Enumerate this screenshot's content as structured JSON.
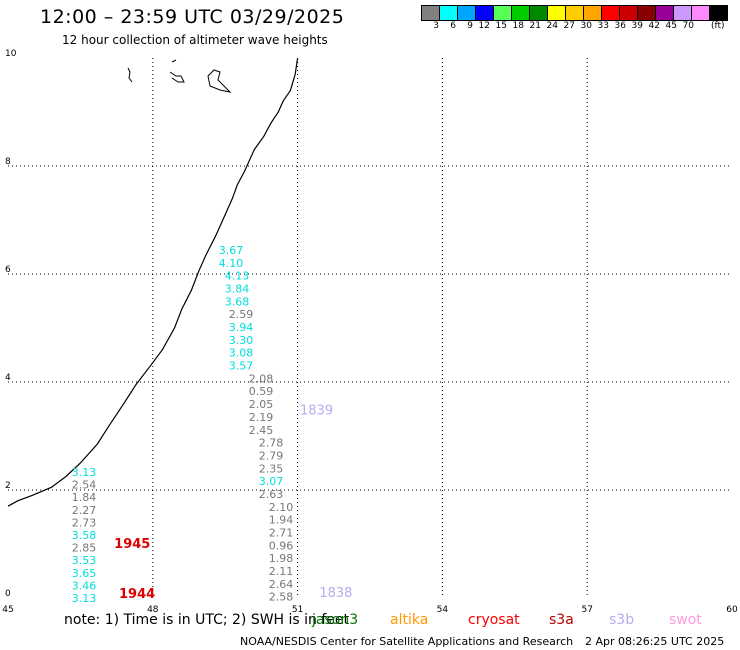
{
  "header": {
    "title": "12:00 – 23:59 UTC 03/29/2025",
    "subtitle": "12 hour collection of altimeter wave heights"
  },
  "colorbar": {
    "colors": [
      "#808080",
      "#00ffff",
      "#00a5ff",
      "#0000ff",
      "#55ff55",
      "#00cc00",
      "#008800",
      "#ffff00",
      "#ffcc00",
      "#ffa500",
      "#ff0000",
      "#cc0000",
      "#880000",
      "#990099",
      "#cc99ff",
      "#ff88ff",
      "#000000"
    ],
    "labels": [
      "3",
      "6",
      "9",
      "12",
      "15",
      "18",
      "21",
      "24",
      "27",
      "30",
      "33",
      "36",
      "39",
      "42",
      "45",
      "70"
    ],
    "unit": "(ft)"
  },
  "map": {
    "lon_ticks": [
      "45",
      "48",
      "51",
      "54",
      "57",
      "60"
    ],
    "lat_ticks": [
      "0",
      "2",
      "4",
      "6",
      "8",
      "10"
    ],
    "lon_range": [
      45,
      60
    ],
    "lat_range": [
      0,
      10
    ],
    "wave_heights": [
      {
        "lon": 46.5,
        "values": [
          "3.13",
          "2.54",
          "1.84",
          "2.27",
          "2.73",
          "3.58",
          "2.85",
          "3.53",
          "3.65",
          "3.46",
          "3.13"
        ],
        "colors": [
          "#00dddd",
          "#777777",
          "#777777",
          "#777777",
          "#777777",
          "#00dddd",
          "#777777",
          "#00dddd",
          "#00dddd",
          "#00dddd",
          "#00dddd"
        ],
        "lat_top": 2.3,
        "lat_step": 0.232
      },
      {
        "lon": 46.9,
        "values": [
          "3.67",
          "4.10",
          "4.13",
          "3.84",
          "3.68",
          "2.59",
          "3.94",
          "3.30",
          "3.08",
          "3.57",
          "2.08",
          "0.59",
          "2.05",
          "2.19",
          "2.45",
          "2.78",
          "2.79",
          "2.35",
          "3.07",
          "2.63",
          "2.10",
          "1.94",
          "2.71",
          "0.96",
          "1.98",
          "2.11",
          "2.64",
          "2.58"
        ],
        "colors": [
          "#00dddd",
          "#00dddd",
          "#00dddd",
          "#00dddd",
          "#00dddd",
          "#777777",
          "#00dddd",
          "#00dddd",
          "#00dddd",
          "#00dddd",
          "#777777",
          "#777777",
          "#777777",
          "#777777",
          "#777777",
          "#777777",
          "#777777",
          "#777777",
          "#00dddd",
          "#777777",
          "#777777",
          "#777777",
          "#777777",
          "#777777",
          "#777777",
          "#777777",
          "#777777",
          "#777777"
        ],
        "lat_top": 6.35,
        "lat_step": 0.232
      }
    ],
    "time_labels": [
      {
        "text": "1945",
        "color": "#dd0000",
        "lon": 47.2,
        "lat": 0.93
      },
      {
        "text": "1944",
        "color": "#dd0000",
        "lon": 47.3,
        "lat": 0.0
      },
      {
        "text": "1839",
        "color": "#bbaaee",
        "lon": 51.05,
        "lat": 3.4
      },
      {
        "text": "1838",
        "color": "#bbaaee",
        "lon": 51.45,
        "lat": 0.02
      }
    ],
    "coast_line": [
      [
        51.0,
        10.0
      ],
      [
        50.95,
        9.7
      ],
      [
        50.9,
        9.55
      ],
      [
        50.85,
        9.4
      ],
      [
        50.7,
        9.2
      ],
      [
        50.6,
        9.0
      ],
      [
        50.45,
        8.8
      ],
      [
        50.3,
        8.55
      ],
      [
        50.1,
        8.3
      ],
      [
        49.9,
        7.9
      ],
      [
        49.75,
        7.65
      ],
      [
        49.65,
        7.4
      ],
      [
        49.5,
        7.1
      ],
      [
        49.3,
        6.7
      ],
      [
        49.1,
        6.35
      ],
      [
        48.95,
        6.05
      ],
      [
        48.8,
        5.7
      ],
      [
        48.6,
        5.35
      ],
      [
        48.45,
        5.0
      ],
      [
        48.2,
        4.6
      ],
      [
        47.95,
        4.3
      ],
      [
        47.65,
        3.95
      ],
      [
        47.4,
        3.6
      ],
      [
        47.1,
        3.2
      ],
      [
        46.85,
        2.85
      ],
      [
        46.5,
        2.5
      ],
      [
        46.2,
        2.25
      ],
      [
        45.9,
        2.05
      ],
      [
        45.5,
        1.9
      ],
      [
        45.2,
        1.8
      ],
      [
        45.0,
        1.7
      ]
    ]
  },
  "footer": {
    "note": "note:  1) Time is in UTC;  2) SWH is in feet",
    "satellites": [
      {
        "name": "jason3",
        "color": "#007700"
      },
      {
        "name": "altika",
        "color": "#ff9900"
      },
      {
        "name": "cryosat",
        "color": "#ff0000"
      },
      {
        "name": "s3a",
        "color": "#bb0000"
      },
      {
        "name": "s3b",
        "color": "#bbaaee"
      },
      {
        "name": "swot",
        "color": "#ff99dd"
      }
    ],
    "credit": "NOAA/NESDIS Center for Satellite Applications and Research",
    "timestamp": "2 Apr 08:26:25 UTC 2025"
  }
}
